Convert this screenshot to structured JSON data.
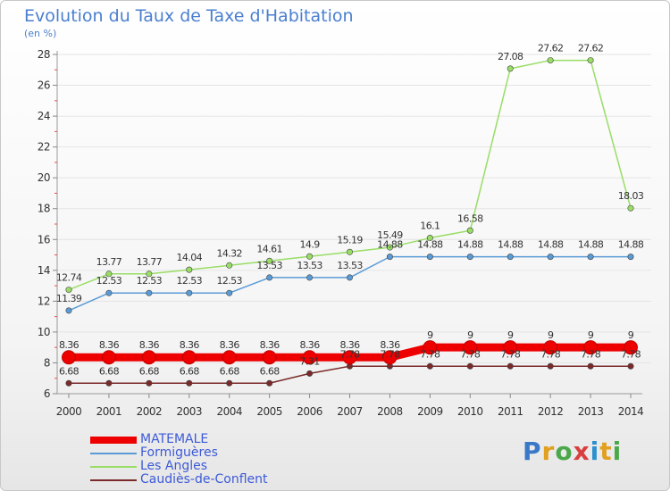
{
  "title": "Evolution du Taux de Taxe d'Habitation",
  "subtitle": "(en %)",
  "logo_text": "Proxiti",
  "chart_data": {
    "type": "line",
    "title": "Evolution du Taux de Taxe d'Habitation",
    "ylabel": "(en %)",
    "xlabel": "",
    "ylim": [
      6,
      28
    ],
    "yticks": [
      6,
      8,
      10,
      12,
      14,
      16,
      18,
      20,
      22,
      24,
      26,
      28
    ],
    "x": [
      "2000",
      "2001",
      "2002",
      "2003",
      "2004",
      "2005",
      "2006",
      "2007",
      "2008",
      "2009",
      "2010",
      "2011",
      "2012",
      "2013",
      "2014"
    ],
    "series": [
      {
        "name": "MATEMALE",
        "color": "#ee0000",
        "values": [
          8.36,
          8.36,
          8.36,
          8.36,
          8.36,
          8.36,
          8.36,
          8.36,
          8.36,
          9,
          9,
          9,
          9,
          9,
          9
        ],
        "labels": [
          "8.36",
          "8.36",
          "8.36",
          "8.36",
          "8.36",
          "8.36",
          "8.36",
          "8.36",
          "8.36",
          "9",
          "9",
          "9",
          "9",
          "9",
          "9"
        ]
      },
      {
        "name": "Formiguères",
        "color": "#5b9bd5",
        "values": [
          11.39,
          12.53,
          12.53,
          12.53,
          12.53,
          13.53,
          13.53,
          13.53,
          14.88,
          14.88,
          14.88,
          14.88,
          14.88,
          14.88,
          14.88
        ],
        "labels": [
          "11.39",
          "12.53",
          "12.53",
          "12.53",
          "12.53",
          "13.53",
          "13.53",
          "13.53",
          "14.88",
          "14.88",
          "14.88",
          "14.88",
          "14.88",
          "14.88",
          "14.88"
        ]
      },
      {
        "name": "Les Angles",
        "color": "#99dd66",
        "values": [
          12.74,
          13.77,
          13.77,
          14.04,
          14.32,
          14.61,
          14.9,
          15.19,
          15.49,
          16.1,
          16.58,
          27.08,
          27.62,
          27.62,
          18.03
        ],
        "labels": [
          "12.74",
          "13.77",
          "13.77",
          "14.04",
          "14.32",
          "14.61",
          "14.9",
          "15.19",
          "15.49",
          "16.1",
          "16.58",
          "27.08",
          "27.62",
          "27.62",
          "18.03"
        ]
      },
      {
        "name": "Caudiès-de-Conflent",
        "color": "#7a2a2a",
        "values": [
          6.68,
          6.68,
          6.68,
          6.68,
          6.68,
          6.68,
          7.31,
          7.78,
          7.78,
          7.78,
          7.78,
          7.78,
          7.78,
          7.78,
          7.78
        ],
        "labels": [
          "6.68",
          "6.68",
          "6.68",
          "6.68",
          "6.68",
          "6.68",
          "7.31",
          "7.78",
          "7.78",
          "7.78",
          "7.78",
          "7.78",
          "7.78",
          "7.78",
          "7.78"
        ]
      }
    ],
    "legend_position": "bottom-left"
  }
}
